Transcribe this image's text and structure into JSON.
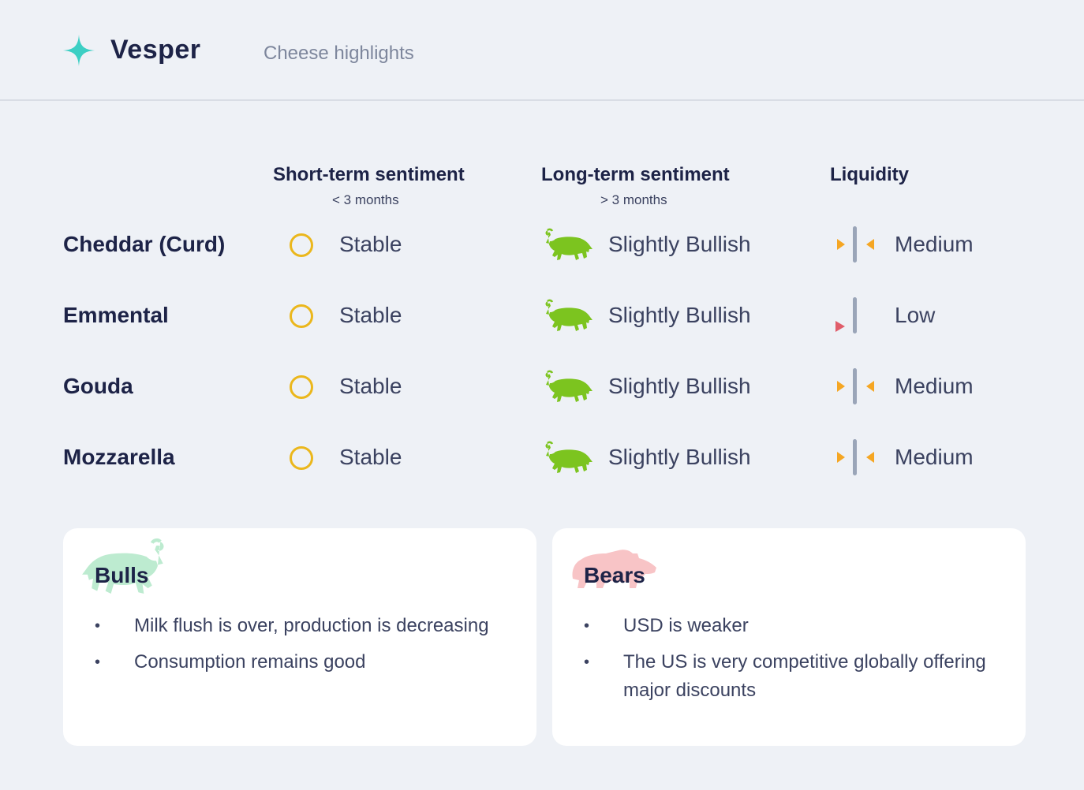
{
  "header": {
    "brand": "Vesper",
    "subtitle": "Cheese highlights"
  },
  "columns": {
    "short_term": {
      "title": "Short-term sentiment",
      "sub": "< 3 months"
    },
    "long_term": {
      "title": "Long-term sentiment",
      "sub": "> 3 months"
    },
    "liquidity": {
      "title": "Liquidity"
    }
  },
  "rows": [
    {
      "name": "Cheddar (Curd)",
      "short_term": "Stable",
      "long_term": "Slightly Bullish",
      "liquidity": "Medium"
    },
    {
      "name": "Emmental",
      "short_term": "Stable",
      "long_term": "Slightly Bullish",
      "liquidity": "Low"
    },
    {
      "name": "Gouda",
      "short_term": "Stable",
      "long_term": "Slightly Bullish",
      "liquidity": "Medium"
    },
    {
      "name": "Mozzarella",
      "short_term": "Stable",
      "long_term": "Slightly Bullish",
      "liquidity": "Medium"
    }
  ],
  "bulls": {
    "title": "Bulls",
    "items": [
      "Milk flush is over, production is decreasing",
      "Consumption remains good"
    ]
  },
  "bears": {
    "title": "Bears",
    "items": [
      "USD is weaker",
      "The US is very competitive globally offering major discounts"
    ]
  },
  "colors": {
    "accent_teal": "#3ccfc4",
    "stable_yellow": "#ebb71c",
    "bull_green": "#7cc41f",
    "liquidity_orange": "#f5a623",
    "liquidity_low_red": "#e05d6a",
    "bull_card_green": "#bdebd0",
    "bear_card_pink": "#f8c4c6"
  },
  "icons": {
    "logo": "sparkle-icon",
    "stable": "circle-icon",
    "bull": "bull-icon",
    "liquidity_medium": "liquidity-medium-icon",
    "liquidity_low": "liquidity-low-icon",
    "bear": "bear-icon"
  }
}
